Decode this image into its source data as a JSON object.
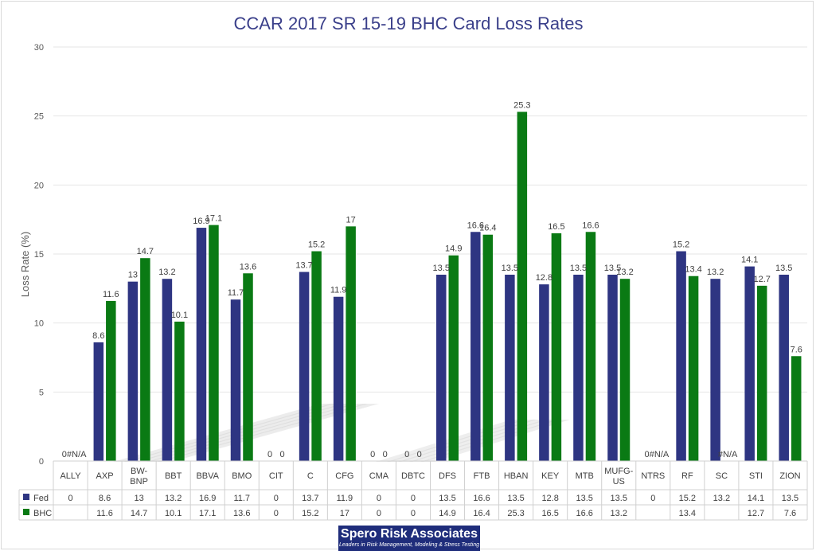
{
  "chart_data": {
    "type": "bar",
    "title": "CCAR 2017 SR 15-19 BHC Card Loss Rates",
    "ylabel": "Loss Rate (%)",
    "xlabel": "",
    "ylim": [
      0,
      30
    ],
    "yticks": [
      0,
      5,
      10,
      15,
      20,
      25,
      30
    ],
    "grid": true,
    "legend": "data-table-left",
    "categories": [
      "ALLY",
      "AXP",
      "BW-BNP",
      "BBT",
      "BBVA",
      "BMO",
      "CIT",
      "C",
      "CFG",
      "CMA",
      "DBTC",
      "DFS",
      "FTB",
      "HBAN",
      "KEY",
      "MTB",
      "MUFG-US",
      "NTRS",
      "RF",
      "SC",
      "STI",
      "ZION"
    ],
    "series": [
      {
        "name": "Fed",
        "color": "#2e3582",
        "values": [
          0,
          8.6,
          13,
          13.2,
          16.9,
          11.7,
          0,
          13.7,
          11.9,
          0,
          0,
          13.5,
          16.6,
          13.5,
          12.8,
          13.5,
          13.5,
          0,
          15.2,
          13.2,
          14.1,
          13.5
        ],
        "labels": [
          "0",
          "8.6",
          "13",
          "13.2",
          "16.9",
          "11.7",
          "0",
          "13.7",
          "11.9",
          "0",
          "0",
          "13.5",
          "16.6",
          "13.5",
          "12.8",
          "13.5",
          "13.5",
          "0",
          "15.2",
          "13.2",
          "14.1",
          "13.5"
        ],
        "table": [
          "0",
          "8.6",
          "13",
          "13.2",
          "16.9",
          "11.7",
          "0",
          "13.7",
          "11.9",
          "0",
          "0",
          "13.5",
          "16.6",
          "13.5",
          "12.8",
          "13.5",
          "13.5",
          "0",
          "15.2",
          "13.2",
          "14.1",
          "13.5"
        ]
      },
      {
        "name": "BHC",
        "color": "#0a7a14",
        "values": [
          null,
          11.6,
          14.7,
          10.1,
          17.1,
          13.6,
          0,
          15.2,
          17,
          0,
          0,
          14.9,
          16.4,
          25.3,
          16.5,
          16.6,
          13.2,
          null,
          13.4,
          null,
          12.7,
          7.6
        ],
        "labels": [
          "#N/A",
          "11.6",
          "14.7",
          "10.1",
          "17.1",
          "13.6",
          "0",
          "15.2",
          "17",
          "0",
          "0",
          "14.9",
          "16.4",
          "25.3",
          "16.5",
          "16.6",
          "13.2",
          "#N/A",
          "13.4",
          "#N/A",
          "12.7",
          "7.6"
        ],
        "table": [
          "",
          "11.6",
          "14.7",
          "10.1",
          "17.1",
          "13.6",
          "0",
          "15.2",
          "17",
          "0",
          "0",
          "14.9",
          "16.4",
          "25.3",
          "16.5",
          "16.6",
          "13.2",
          "",
          "13.4",
          "",
          "12.7",
          "7.6"
        ]
      }
    ]
  },
  "logo": {
    "brand": "Spero Risk Associates",
    "tagline": "Leaders in Risk Management, Modeling & Stress Testing"
  }
}
